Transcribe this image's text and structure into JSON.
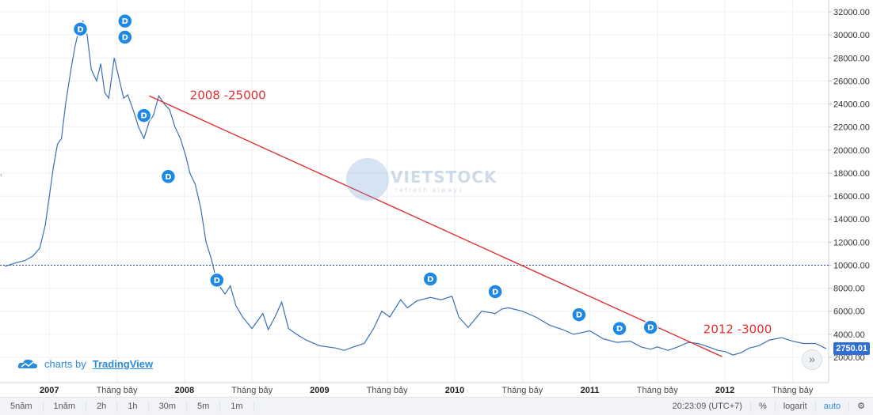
{
  "chart_data": {
    "type": "line",
    "x_labels": [
      "2007",
      "Tháng bảy",
      "2008",
      "Tháng bảy",
      "2009",
      "Tháng bảy",
      "2010",
      "Tháng bảy",
      "2011",
      "Tháng bảy",
      "2012",
      "Tháng bảy"
    ],
    "x_label_dates": [
      2007.0,
      2007.5,
      2008.0,
      2008.5,
      2009.0,
      2009.5,
      2010.0,
      2010.5,
      2011.0,
      2011.5,
      2012.0,
      2012.5
    ],
    "y_ticks": [
      "32000.00",
      "30000.00",
      "28000.00",
      "26000.00",
      "24000.00",
      "22000.00",
      "20000.00",
      "18000.00",
      "16000.00",
      "14000.00",
      "12000.00",
      "10000.00",
      "8000.00",
      "6000.00",
      "4000.00",
      "2000.00"
    ],
    "ylim": [
      1000,
      33000
    ],
    "scale": "linear",
    "series": [
      {
        "color": "#3a6fb5",
        "x": [
          2006.67,
          2006.75,
          2006.82,
          2006.88,
          2006.93,
          2006.97,
          2007.0,
          2007.03,
          2007.06,
          2007.09,
          2007.12,
          2007.16,
          2007.19,
          2007.22,
          2007.25,
          2007.28,
          2007.31,
          2007.35,
          2007.38,
          2007.41,
          2007.44,
          2007.48,
          2007.51,
          2007.55,
          2007.58,
          2007.62,
          2007.66,
          2007.7,
          2007.74,
          2007.77,
          2007.81,
          2007.85,
          2007.89,
          2007.93,
          2007.97,
          2008.01,
          2008.04,
          2008.08,
          2008.12,
          2008.16,
          2008.2,
          2008.23,
          2008.27,
          2008.3,
          2008.34,
          2008.38,
          2008.43,
          2008.5,
          2008.58,
          2008.62,
          2008.67,
          2008.72,
          2008.77,
          2008.83,
          2008.9,
          2009.0,
          2009.12,
          2009.18,
          2009.25,
          2009.33,
          2009.4,
          2009.46,
          2009.52,
          2009.6,
          2009.65,
          2009.72,
          2009.82,
          2009.9,
          2009.98,
          2010.03,
          2010.1,
          2010.2,
          2010.3,
          2010.35,
          2010.4,
          2010.5,
          2010.6,
          2010.7,
          2010.8,
          2010.88,
          2011.0,
          2011.1,
          2011.2,
          2011.3,
          2011.38,
          2011.45,
          2011.5,
          2011.58,
          2011.65,
          2011.73,
          2011.8,
          2011.88,
          2011.95,
          2012.0,
          2012.06,
          2012.12,
          2012.18,
          2012.25,
          2012.33,
          2012.42,
          2012.5,
          2012.58,
          2012.67,
          2012.75
        ],
        "y": [
          9900,
          10200,
          10400,
          10800,
          11500,
          13500,
          16000,
          18500,
          20500,
          21000,
          24000,
          27000,
          29000,
          30500,
          31200,
          30000,
          27000,
          26000,
          27500,
          25000,
          24500,
          28000,
          26500,
          24500,
          24800,
          23500,
          22000,
          21000,
          22500,
          23000,
          24700,
          24000,
          23500,
          22000,
          21000,
          19500,
          18000,
          17000,
          15000,
          12000,
          10500,
          9000,
          8000,
          7500,
          8200,
          6500,
          5500,
          4500,
          5800,
          4400,
          5500,
          6800,
          4500,
          4000,
          3500,
          3000,
          2800,
          2600,
          2900,
          3200,
          4500,
          6000,
          5500,
          7000,
          6300,
          6900,
          7200,
          7000,
          7300,
          5500,
          4600,
          6000,
          5800,
          6200,
          6300,
          6000,
          5500,
          4800,
          4400,
          4000,
          4300,
          3600,
          3300,
          3400,
          2900,
          2700,
          2900,
          2600,
          2900,
          3300,
          3200,
          2900,
          2600,
          2500,
          2200,
          2400,
          2800,
          3000,
          3500,
          3700,
          3400,
          3200,
          3200,
          2750
        ]
      }
    ],
    "reference_line": 10000,
    "trendline": {
      "from": [
        2007.74,
        24700
      ],
      "to": [
        2011.98,
        2050
      ],
      "color": "#e03030"
    },
    "annotations": [
      {
        "text": "2008 -25000",
        "x": 2008.04,
        "y": 24400
      },
      {
        "text": "2012 -3000",
        "x": 2011.84,
        "y": 4100
      }
    ],
    "dividend_markers": [
      {
        "x": 2007.23,
        "y": 30500
      },
      {
        "x": 2007.56,
        "y": 31200
      },
      {
        "x": 2007.56,
        "y": 29800
      },
      {
        "x": 2007.7,
        "y": 23000
      },
      {
        "x": 2007.88,
        "y": 17700
      },
      {
        "x": 2008.24,
        "y": 8700
      },
      {
        "x": 2009.82,
        "y": 8800
      },
      {
        "x": 2010.3,
        "y": 7700
      },
      {
        "x": 2010.92,
        "y": 5700
      },
      {
        "x": 2011.22,
        "y": 4500
      },
      {
        "x": 2011.45,
        "y": 4600
      }
    ],
    "last_value": "2750.01"
  },
  "marker_label": "D",
  "branding": {
    "prefix": "charts by",
    "brand": "TradingView"
  },
  "watermark": {
    "main": "VIETSTOCK",
    "sub": "refresh always"
  },
  "scroll_icon": "»",
  "toolbar": {
    "timeframes": [
      "5năm",
      "1năm",
      "2h",
      "1h",
      "30m",
      "5m",
      "1m"
    ],
    "time": "20:23:09 (UTC+7)",
    "percent": "%",
    "log": "logarit",
    "auto": "auto",
    "settings_icon": "⚙"
  }
}
